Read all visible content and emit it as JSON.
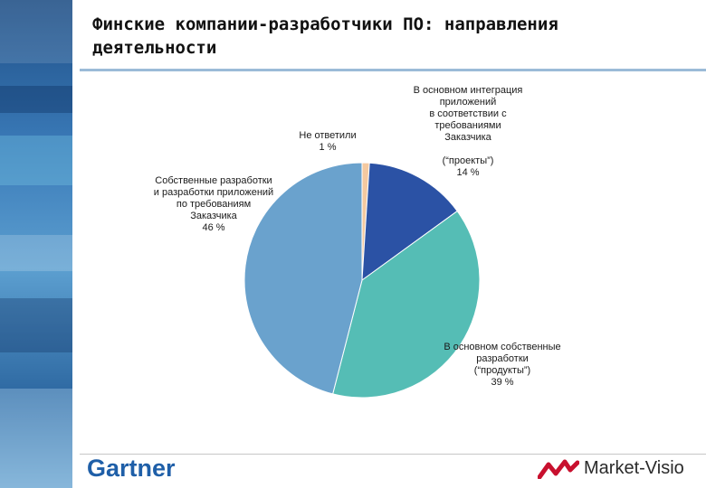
{
  "title": "Финские компании-разработчики ПО: направления деятельности",
  "footer": {
    "left_logo_text": "Gartner",
    "right_logo_text": "Market-Visio",
    "right_logo_icon": "market-visio-zigzag-icon"
  },
  "colors": {
    "sidebar": "#2f6aa3",
    "gartner_blue": "#1f5fa8",
    "mv_red": "#c8102e"
  },
  "chart_data": {
    "type": "pie",
    "title": "",
    "slices": [
      {
        "label_lines": [
          "Не ответили",
          "1 %"
        ],
        "value": 1,
        "color": "#f4c9a0"
      },
      {
        "label_lines": [
          "В основном интеграция",
          "приложений",
          "в соответствии с",
          "требованиями",
          "Заказчика",
          "",
          "(“проекты”)",
          "14 %"
        ],
        "value": 14,
        "color": "#2b52a5"
      },
      {
        "label_lines": [
          "В основном собственные",
          "разработки",
          "(“продукты”)",
          "39 %"
        ],
        "value": 39,
        "color": "#55bdb5"
      },
      {
        "label_lines": [
          "Собственные разработки",
          "и разработки приложений",
          "по требованиям",
          "Заказчика",
          "46 %"
        ],
        "value": 46,
        "color": "#6aa2cd"
      }
    ]
  }
}
